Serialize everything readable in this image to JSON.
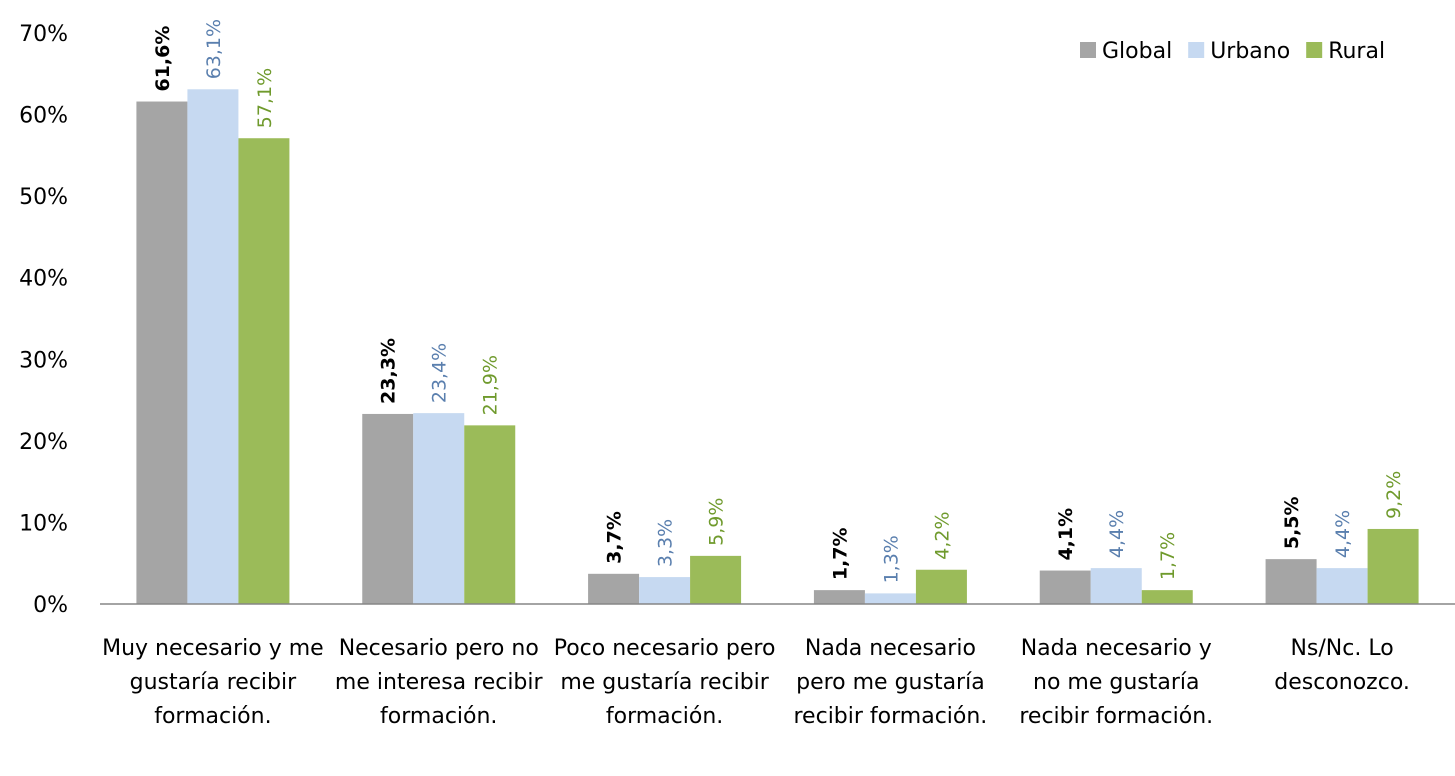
{
  "chart_data": {
    "type": "bar",
    "categories": [
      "Muy necesario y me gustaría recibir formación.",
      "Necesario pero no me interesa recibir formación.",
      "Poco necesario pero me gustaría recibir formación.",
      "Nada necesario pero me gustaría recibir formación.",
      "Nada necesario y no me gustaría recibir formación.",
      "Ns/Nc. Lo desconozco."
    ],
    "series": [
      {
        "name": "Global",
        "color": "#a5a5a5",
        "label_color": "#000000",
        "values": [
          61.6,
          23.3,
          3.7,
          1.7,
          4.1,
          5.5
        ],
        "value_labels": [
          "61,6%",
          "23,3%",
          "3,7%",
          "1,7%",
          "4,1%",
          "5,5%"
        ]
      },
      {
        "name": "Urbano",
        "color": "#c6d9f1",
        "label_color": "#5a7fae",
        "values": [
          63.1,
          23.4,
          3.3,
          1.3,
          4.4,
          4.4
        ],
        "value_labels": [
          "63,1%",
          "23,4%",
          "3,3%",
          "1,3%",
          "4,4%",
          "4,4%"
        ]
      },
      {
        "name": "Rural",
        "color": "#9bbb59",
        "label_color": "#6f9a2c",
        "values": [
          57.1,
          21.9,
          5.9,
          4.2,
          1.7,
          9.2
        ],
        "value_labels": [
          "57,1%",
          "21,9%",
          "5,9%",
          "4,2%",
          "1,7%",
          "9,2%"
        ]
      }
    ],
    "ylim": [
      0,
      70
    ],
    "yticks": [
      {
        "value": 0,
        "label": "0%"
      },
      {
        "value": 10,
        "label": "10%"
      },
      {
        "value": 20,
        "label": "20%"
      },
      {
        "value": 30,
        "label": "30%"
      },
      {
        "value": 40,
        "label": "40%"
      },
      {
        "value": 50,
        "label": "50%"
      },
      {
        "value": 60,
        "label": "60%"
      },
      {
        "value": 70,
        "label": "70%"
      }
    ],
    "grid": false,
    "legend": "top-right"
  }
}
